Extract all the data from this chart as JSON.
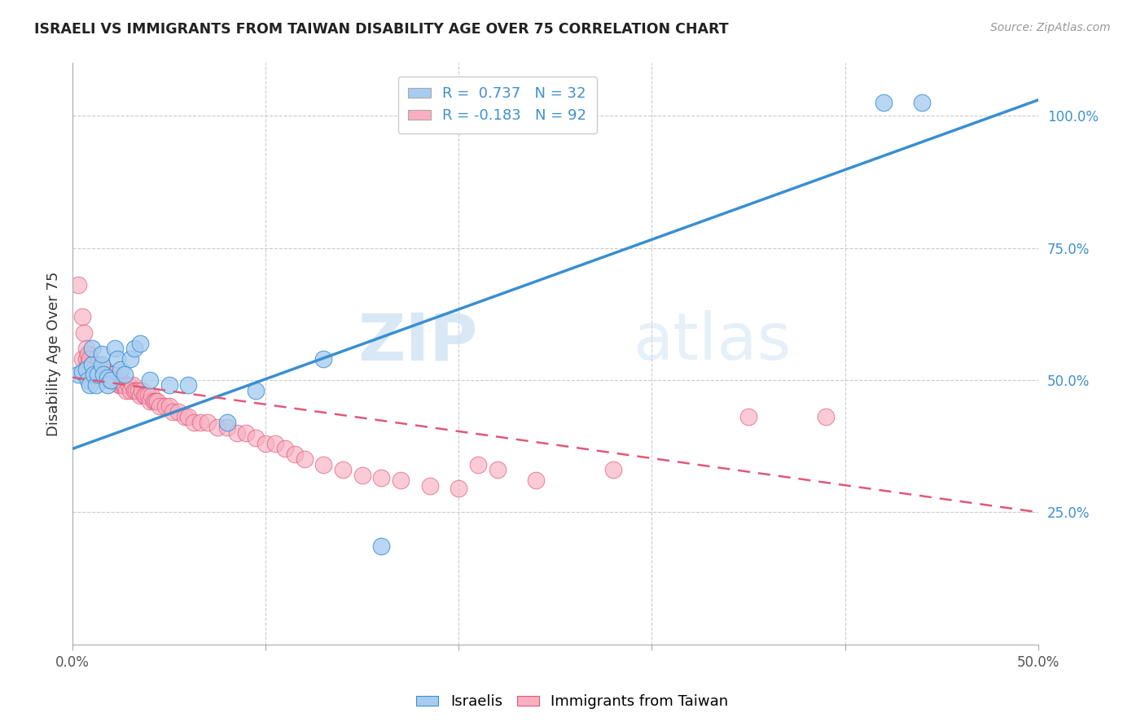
{
  "title": "ISRAELI VS IMMIGRANTS FROM TAIWAN DISABILITY AGE OVER 75 CORRELATION CHART",
  "source": "Source: ZipAtlas.com",
  "ylabel": "Disability Age Over 75",
  "xmin": 0.0,
  "xmax": 0.5,
  "ymin": 0.0,
  "ymax": 1.1,
  "color_israeli": "#a8ccf0",
  "color_taiwan": "#f8afc0",
  "color_line_israeli": "#3a8fd0",
  "color_line_taiwan": "#e05878",
  "watermark_zip": "ZIP",
  "watermark_atlas": "atlas",
  "legend_r1": "R =  0.737   N = 32",
  "legend_r2": "R = -0.183   N = 92",
  "israeli_line_x0": 0.0,
  "israeli_line_y0": 0.37,
  "israeli_line_x1": 0.5,
  "israeli_line_y1": 1.03,
  "taiwan_line_x0": 0.0,
  "taiwan_line_y0": 0.505,
  "taiwan_line_x1": 0.5,
  "taiwan_line_y1": 0.25,
  "israelis_x": [
    0.003,
    0.005,
    0.007,
    0.008,
    0.009,
    0.01,
    0.01,
    0.011,
    0.012,
    0.013,
    0.015,
    0.015,
    0.016,
    0.018,
    0.018,
    0.02,
    0.022,
    0.023,
    0.025,
    0.027,
    0.03,
    0.032,
    0.035,
    0.04,
    0.05,
    0.06,
    0.08,
    0.095,
    0.13,
    0.16,
    0.42,
    0.44
  ],
  "israelis_y": [
    0.51,
    0.515,
    0.52,
    0.5,
    0.49,
    0.53,
    0.56,
    0.51,
    0.49,
    0.51,
    0.53,
    0.55,
    0.51,
    0.505,
    0.49,
    0.5,
    0.56,
    0.54,
    0.52,
    0.51,
    0.54,
    0.56,
    0.57,
    0.5,
    0.49,
    0.49,
    0.42,
    0.48,
    0.54,
    0.185,
    1.025,
    1.025
  ],
  "taiwan_x": [
    0.003,
    0.005,
    0.005,
    0.006,
    0.007,
    0.007,
    0.008,
    0.008,
    0.009,
    0.009,
    0.01,
    0.01,
    0.01,
    0.011,
    0.011,
    0.012,
    0.012,
    0.013,
    0.013,
    0.014,
    0.014,
    0.015,
    0.015,
    0.016,
    0.016,
    0.017,
    0.017,
    0.018,
    0.018,
    0.019,
    0.019,
    0.02,
    0.02,
    0.021,
    0.021,
    0.022,
    0.023,
    0.024,
    0.025,
    0.025,
    0.026,
    0.027,
    0.028,
    0.029,
    0.03,
    0.031,
    0.032,
    0.033,
    0.034,
    0.035,
    0.036,
    0.037,
    0.038,
    0.039,
    0.04,
    0.041,
    0.042,
    0.043,
    0.044,
    0.045,
    0.048,
    0.05,
    0.052,
    0.055,
    0.058,
    0.06,
    0.063,
    0.066,
    0.07,
    0.075,
    0.08,
    0.085,
    0.09,
    0.095,
    0.1,
    0.105,
    0.11,
    0.115,
    0.12,
    0.13,
    0.14,
    0.15,
    0.16,
    0.17,
    0.185,
    0.2,
    0.21,
    0.22,
    0.24,
    0.28,
    0.35,
    0.39
  ],
  "taiwan_y": [
    0.68,
    0.62,
    0.54,
    0.59,
    0.56,
    0.54,
    0.55,
    0.53,
    0.54,
    0.52,
    0.53,
    0.52,
    0.51,
    0.52,
    0.51,
    0.53,
    0.51,
    0.53,
    0.51,
    0.52,
    0.51,
    0.52,
    0.51,
    0.52,
    0.51,
    0.52,
    0.51,
    0.51,
    0.5,
    0.51,
    0.5,
    0.51,
    0.5,
    0.51,
    0.5,
    0.5,
    0.5,
    0.49,
    0.5,
    0.49,
    0.49,
    0.49,
    0.48,
    0.49,
    0.48,
    0.49,
    0.48,
    0.48,
    0.48,
    0.47,
    0.48,
    0.47,
    0.47,
    0.47,
    0.46,
    0.47,
    0.46,
    0.46,
    0.46,
    0.45,
    0.45,
    0.45,
    0.44,
    0.44,
    0.43,
    0.43,
    0.42,
    0.42,
    0.42,
    0.41,
    0.41,
    0.4,
    0.4,
    0.39,
    0.38,
    0.38,
    0.37,
    0.36,
    0.35,
    0.34,
    0.33,
    0.32,
    0.315,
    0.31,
    0.3,
    0.295,
    0.34,
    0.33,
    0.31,
    0.33,
    0.43,
    0.43
  ]
}
